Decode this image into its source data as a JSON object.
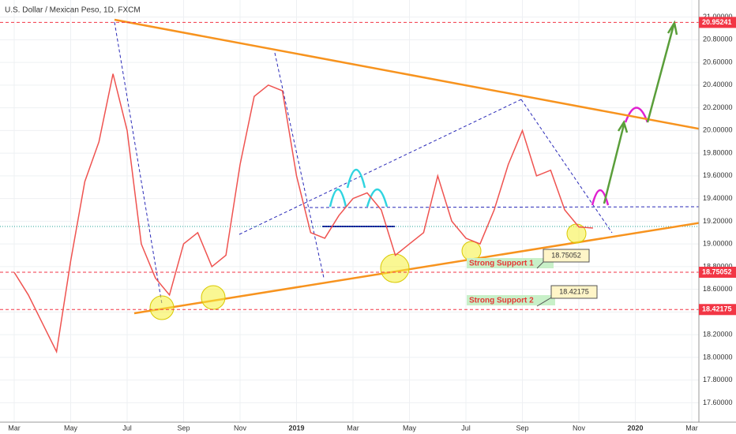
{
  "chart_data": {
    "type": "line",
    "title": "U.S. Dollar / Mexican Peso, 1D, FXCM",
    "categories": [
      "Mar",
      null,
      null,
      null,
      "May",
      null,
      null,
      null,
      "Jul",
      null,
      null,
      null,
      "Sep",
      null,
      null,
      null,
      "Nov",
      null,
      null,
      null,
      "2019",
      null,
      null,
      null,
      "Mar",
      null,
      null,
      null,
      "May",
      null,
      null,
      null,
      "Jul",
      null,
      null,
      null,
      "Sep",
      null,
      null,
      null,
      "Nov",
      null,
      null,
      null,
      "2020",
      null,
      null,
      null,
      "Mar"
    ],
    "series": [
      {
        "name": "USD/MXN",
        "color": "#ef5350",
        "values": [
          18.75,
          18.55,
          18.3,
          18.05,
          18.85,
          19.55,
          19.9,
          20.5,
          20.0,
          19.0,
          18.7,
          18.55,
          19.0,
          19.1,
          18.8,
          18.9,
          19.7,
          20.3,
          20.4,
          20.35,
          19.6,
          19.1,
          19.05,
          19.25,
          19.4,
          19.45,
          19.3,
          18.9,
          19.0,
          19.1,
          19.6,
          19.2,
          19.05,
          19.0,
          19.3,
          19.7,
          20.0,
          19.6,
          19.65,
          19.3,
          19.15,
          19.14,
          null,
          null,
          null,
          null,
          null,
          null,
          null
        ]
      }
    ],
    "ylim": [
      17.45,
      21.15
    ],
    "yticks": [
      {
        "value": 17.6,
        "label": "17.60000"
      },
      {
        "value": 17.8,
        "label": "17.80000"
      },
      {
        "value": 18,
        "label": "18.00000"
      },
      {
        "value": 18.2,
        "label": "18.20000"
      },
      {
        "value": 18.4,
        "label": "18.40000"
      },
      {
        "value": 18.6,
        "label": "18.60000"
      },
      {
        "value": 18.8,
        "label": "18.80000"
      },
      {
        "value": 19,
        "label": "19.00000"
      },
      {
        "value": 19.2,
        "label": "19.20000"
      },
      {
        "value": 19.4,
        "label": "19.40000"
      },
      {
        "value": 19.6,
        "label": "19.60000"
      },
      {
        "value": 19.8,
        "label": "19.80000"
      },
      {
        "value": 20,
        "label": "20.00000"
      },
      {
        "value": 20.2,
        "label": "20.20000"
      },
      {
        "value": 20.4,
        "label": "20.40000"
      },
      {
        "value": 20.6,
        "label": "20.60000"
      },
      {
        "value": 20.8,
        "label": "20.80000"
      },
      {
        "value": 21,
        "label": "21.00000"
      }
    ],
    "grid": true,
    "hlines": [
      20.95241,
      18.75052,
      18.42175
    ],
    "hline_color": "#f23645",
    "annotations": [
      "Strong Support 1",
      "Strong Support 2"
    ]
  }
}
